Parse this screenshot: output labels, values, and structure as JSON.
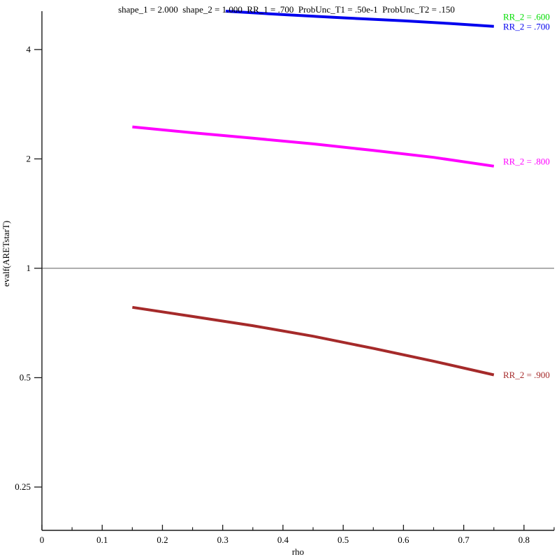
{
  "chart_data": {
    "type": "line",
    "title": "shape_1 = 2.000  shape_2 = 1.000  RR_1 = .700  ProbUnc_T1 = .50e-1  ProbUnc_T2 = .150",
    "xlabel": "rho",
    "ylabel": "evalf(ARETstarT)",
    "grid": false,
    "legend_position": "right-edge-curve-labels",
    "x_axis": {
      "min": 0,
      "max": 0.85,
      "major_ticks": [
        0,
        0.1,
        0.2,
        0.3,
        0.4,
        0.5,
        0.6,
        0.7,
        0.8
      ],
      "major_tick_labels": [
        "0",
        "0.1",
        "0.2",
        "0.3",
        "0.4",
        "0.5",
        "0.6",
        "0.7",
        "0.8"
      ],
      "minor_ticks": [
        0.05,
        0.15,
        0.25,
        0.35,
        0.45,
        0.55,
        0.65,
        0.75,
        0.85
      ]
    },
    "y_axis": {
      "scale": "log2",
      "min": 0.19,
      "max": 5.1,
      "ticks": [
        4,
        2,
        1,
        0.5,
        0.25
      ],
      "tick_labels": [
        "4",
        "2",
        "1",
        "0.5",
        "0.25"
      ]
    },
    "reference_line": {
      "y": 1,
      "color": "#a8a8a8"
    },
    "axis_color": "#1a1a1a",
    "series": [
      {
        "label": "RR_2 = .600",
        "color": "#00dd00",
        "label_value": 4.92,
        "points": []
      },
      {
        "label": "RR_2 = .700",
        "color": "#0000ee",
        "points": [
          [
            0.305,
            5.1
          ],
          [
            0.4,
            4.99
          ],
          [
            0.5,
            4.89
          ],
          [
            0.6,
            4.8
          ],
          [
            0.675,
            4.72
          ],
          [
            0.75,
            4.63
          ]
        ]
      },
      {
        "label": "RR_2 = .800",
        "color": "#ff00ff",
        "label_value": 1.97,
        "points": [
          [
            0.15,
            2.45
          ],
          [
            0.25,
            2.36
          ],
          [
            0.35,
            2.28
          ],
          [
            0.45,
            2.2
          ],
          [
            0.55,
            2.11
          ],
          [
            0.65,
            2.02
          ],
          [
            0.75,
            1.91
          ]
        ]
      },
      {
        "label": "RR_2 = .900",
        "color": "#a52a2a",
        "points": [
          [
            0.15,
            0.781
          ],
          [
            0.25,
            0.737
          ],
          [
            0.35,
            0.695
          ],
          [
            0.45,
            0.65
          ],
          [
            0.55,
            0.602
          ],
          [
            0.65,
            0.555
          ],
          [
            0.75,
            0.509
          ]
        ]
      }
    ]
  }
}
